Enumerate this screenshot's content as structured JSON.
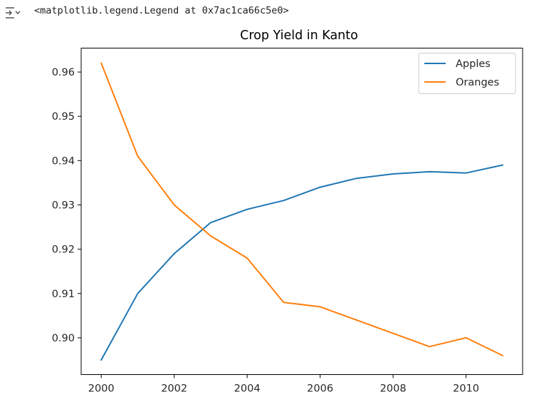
{
  "output": {
    "text": "<matplotlib.legend.Legend at 0x7ac1ca66c5e0>",
    "icon": "output-collapse-icon"
  },
  "chart_data": {
    "type": "line",
    "title": "Crop Yield in Kanto",
    "xlabel": "",
    "ylabel": "",
    "x": [
      2000,
      2001,
      2002,
      2003,
      2004,
      2005,
      2006,
      2007,
      2008,
      2009,
      2010,
      2011
    ],
    "series": [
      {
        "name": "Apples",
        "color": "#1f77b4",
        "values": [
          0.895,
          0.91,
          0.919,
          0.926,
          0.929,
          0.931,
          0.934,
          0.936,
          0.937,
          0.9375,
          0.9372,
          0.939
        ]
      },
      {
        "name": "Oranges",
        "color": "#ff7f0e",
        "values": [
          0.962,
          0.941,
          0.93,
          0.923,
          0.918,
          0.908,
          0.907,
          0.904,
          0.901,
          0.898,
          0.9,
          0.896
        ]
      }
    ],
    "xlim": [
      1999.45,
      2011.55
    ],
    "ylim": [
      0.8917,
      0.9654
    ],
    "xticks": [
      2000,
      2002,
      2004,
      2006,
      2008,
      2010
    ],
    "xtick_labels": [
      "2000",
      "2002",
      "2004",
      "2006",
      "2008",
      "2010"
    ],
    "yticks": [
      0.9,
      0.91,
      0.92,
      0.93,
      0.94,
      0.95,
      0.96
    ],
    "ytick_labels": [
      "0.90",
      "0.91",
      "0.92",
      "0.93",
      "0.94",
      "0.95",
      "0.96"
    ],
    "grid": false,
    "legend_position": "top-right"
  }
}
